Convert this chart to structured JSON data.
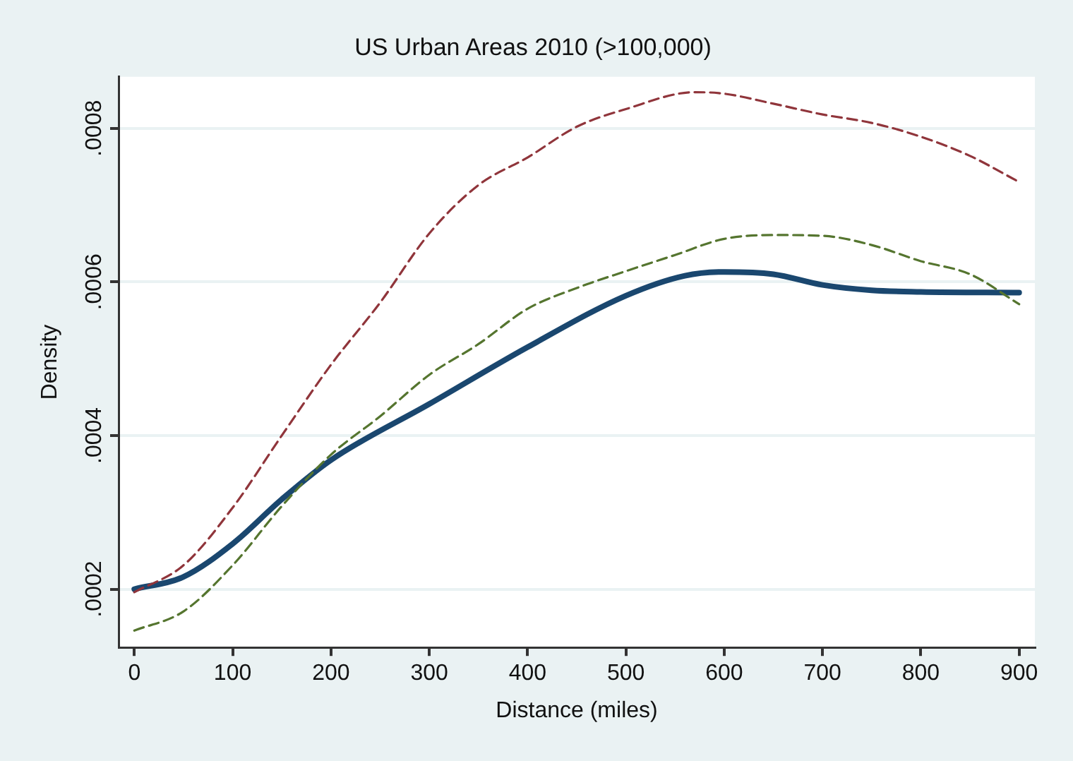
{
  "chart_data": {
    "type": "line",
    "title": "US Urban Areas 2010 (>100,000)",
    "xlabel": "Distance (miles)",
    "ylabel": "Density",
    "xlim": [
      -16,
      916
    ],
    "xticks": [
      0,
      100,
      200,
      300,
      400,
      500,
      600,
      700,
      800,
      900
    ],
    "ylim": [
      0.000124,
      0.000867
    ],
    "yticks": [
      {
        "value": 0.0002,
        "label": ".0002"
      },
      {
        "value": 0.0004,
        "label": ".0004"
      },
      {
        "value": 0.0006,
        "label": ".0006"
      },
      {
        "value": 0.0008,
        "label": ".0008"
      }
    ],
    "grid": "y",
    "legend": false,
    "marker": "none",
    "series": [
      {
        "color": "#1a476f",
        "line_style": "solid",
        "x": [
          0,
          50,
          100,
          150,
          200,
          300,
          400,
          500,
          560,
          600,
          650,
          700,
          750,
          800,
          900
        ],
        "values": [
          0.0002,
          0.000216,
          0.000259,
          0.000317,
          0.000368,
          0.000441,
          0.000515,
          0.000582,
          0.000608,
          0.000613,
          0.00061,
          0.000596,
          0.000589,
          0.000587,
          0.000586
        ]
      },
      {
        "color": "#90353b",
        "line_style": "dashed",
        "x": [
          0,
          50,
          100,
          150,
          200,
          250,
          300,
          350,
          400,
          450,
          500,
          570,
          600,
          650,
          700,
          750,
          800,
          850,
          900
        ],
        "values": [
          0.000196,
          0.000231,
          0.000306,
          0.0004,
          0.000492,
          0.000573,
          0.000663,
          0.000726,
          0.000762,
          0.000802,
          0.000825,
          0.000847,
          0.000845,
          0.000832,
          0.000818,
          0.000807,
          0.000789,
          0.000764,
          0.00073
        ]
      },
      {
        "color": "#55752f",
        "line_style": "dashed",
        "x": [
          0,
          50,
          100,
          150,
          200,
          250,
          300,
          350,
          400,
          450,
          500,
          550,
          600,
          650,
          700,
          750,
          800,
          850,
          900
        ],
        "values": [
          0.000146,
          0.000171,
          0.000231,
          0.000308,
          0.000375,
          0.000425,
          0.000479,
          0.000519,
          0.000565,
          0.000592,
          0.000614,
          0.000635,
          0.000656,
          0.000661,
          0.00066,
          0.000648,
          0.000627,
          0.00061,
          0.000571
        ]
      }
    ]
  }
}
